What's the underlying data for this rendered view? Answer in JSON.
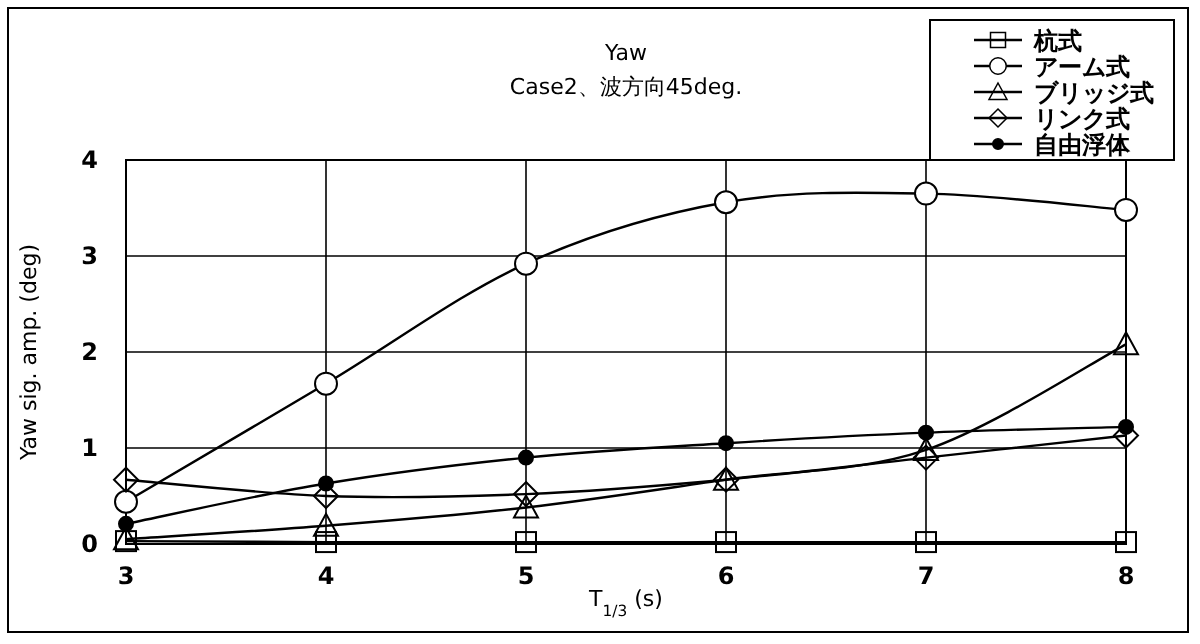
{
  "chart_data": {
    "type": "line",
    "title": "Yaw",
    "subtitle": "Case2、波方向45deg.",
    "xlabel": "T$_{1/3}$ (s)",
    "ylabel": "Yaw sig. amp. (deg)",
    "x": [
      3,
      4,
      5,
      6,
      7,
      8
    ],
    "xlim": [
      3,
      8
    ],
    "xticks": [
      3,
      4,
      5,
      6,
      7,
      8
    ],
    "ylim": [
      0,
      4
    ],
    "yticks": [
      0,
      1,
      2,
      3,
      4
    ],
    "grid": true,
    "legend": "top right",
    "line_style": "solid",
    "series": [
      {
        "name": "杭式",
        "color": "#000000",
        "marker": "square",
        "values": [
          0.03,
          0.02,
          0.02,
          0.02,
          0.02,
          0.02
        ]
      },
      {
        "name": "アーム式",
        "color": "#000000",
        "marker": "circle",
        "values": [
          0.44,
          1.67,
          2.92,
          3.56,
          3.65,
          3.48
        ]
      },
      {
        "name": "ブリッジ式",
        "color": "#000000",
        "marker": "triangle",
        "values": [
          0.05,
          0.19,
          0.38,
          0.67,
          0.98,
          2.08
        ]
      },
      {
        "name": "リンク式",
        "color": "#000000",
        "marker": "diamond",
        "values": [
          0.67,
          0.5,
          0.52,
          0.67,
          0.9,
          1.13
        ]
      },
      {
        "name": "自由浮体",
        "color": "#000000",
        "marker": "filled circle",
        "values": [
          0.21,
          0.63,
          0.9,
          1.05,
          1.16,
          1.22
        ]
      }
    ]
  }
}
